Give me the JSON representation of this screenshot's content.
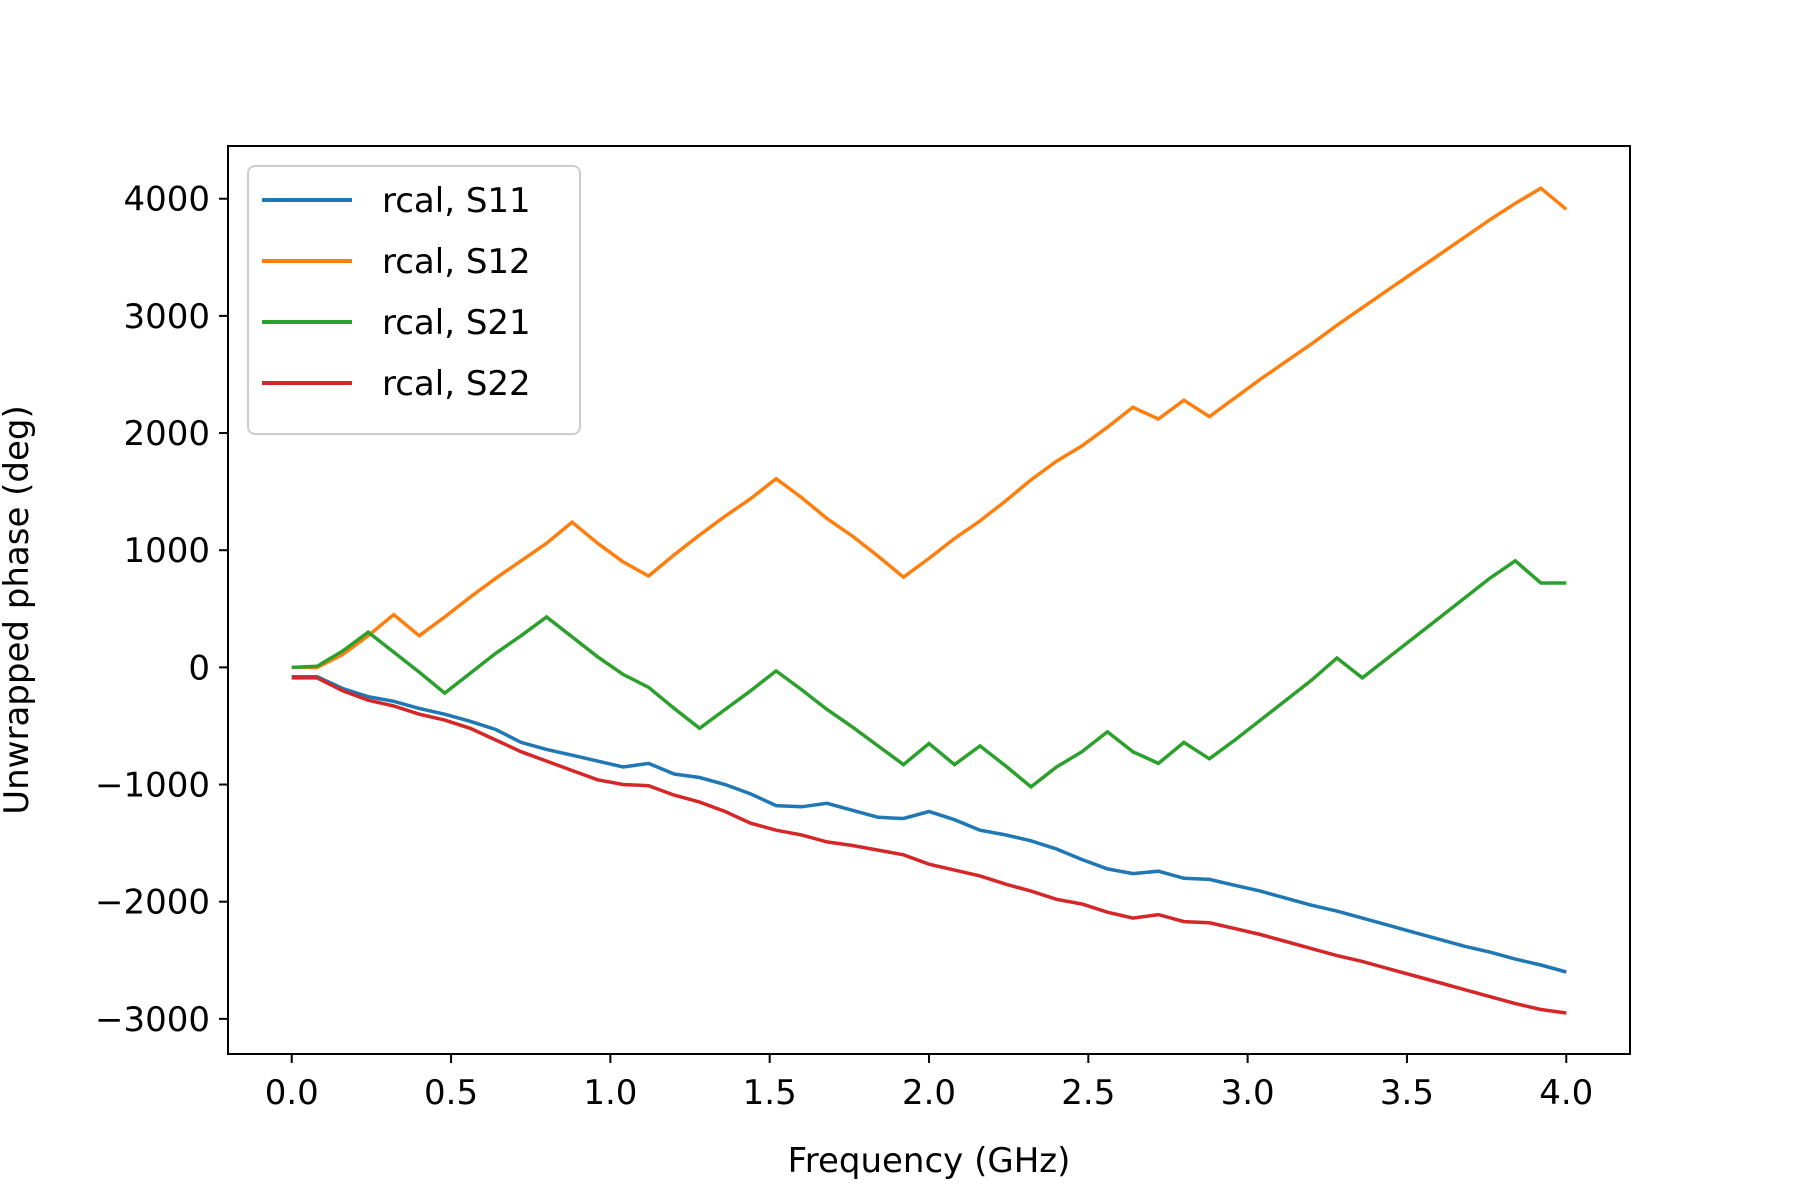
{
  "chart_data": {
    "type": "line",
    "xlabel": "Frequency (GHz)",
    "ylabel": "Unwrapped phase (deg)",
    "xlim": [
      -0.2,
      4.2
    ],
    "ylim": [
      -3300,
      4450
    ],
    "xticks": [
      0.0,
      0.5,
      1.0,
      1.5,
      2.0,
      2.5,
      3.0,
      3.5,
      4.0
    ],
    "xtick_labels": [
      "0.0",
      "0.5",
      "1.0",
      "1.5",
      "2.0",
      "2.5",
      "3.0",
      "3.5",
      "4.0"
    ],
    "yticks": [
      -3000,
      -2000,
      -1000,
      0,
      1000,
      2000,
      3000,
      4000
    ],
    "ytick_labels": [
      "−3000",
      "−2000",
      "−1000",
      "0",
      "1000",
      "2000",
      "3000",
      "4000"
    ],
    "grid": false,
    "legend": "upper-left",
    "x": [
      0.0,
      0.08,
      0.16,
      0.24,
      0.32,
      0.4,
      0.48,
      0.56,
      0.64,
      0.72,
      0.8,
      0.88,
      0.96,
      1.04,
      1.12,
      1.2,
      1.28,
      1.36,
      1.44,
      1.52,
      1.6,
      1.68,
      1.76,
      1.84,
      1.92,
      2.0,
      2.08,
      2.16,
      2.24,
      2.32,
      2.4,
      2.48,
      2.56,
      2.64,
      2.72,
      2.8,
      2.88,
      2.96,
      3.04,
      3.12,
      3.2,
      3.28,
      3.36,
      3.44,
      3.52,
      3.6,
      3.68,
      3.76,
      3.84,
      3.92,
      4.0
    ],
    "series": [
      {
        "name": "rcal, S11",
        "color": "#1f77b4",
        "values": [
          -80,
          -80,
          -180,
          -250,
          -290,
          -350,
          -400,
          -460,
          -530,
          -640,
          -700,
          -750,
          -800,
          -850,
          -820,
          -910,
          -940,
          -1000,
          -1080,
          -1180,
          -1190,
          -1160,
          -1220,
          -1280,
          -1290,
          -1230,
          -1300,
          -1390,
          -1430,
          -1480,
          -1550,
          -1640,
          -1720,
          -1760,
          -1740,
          -1800,
          -1810,
          -1860,
          -1910,
          -1970,
          -2030,
          -2080,
          -2140,
          -2200,
          -2260,
          -2320,
          -2380,
          -2430,
          -2490,
          -2540,
          -2600
        ]
      },
      {
        "name": "rcal, S12",
        "color": "#ff7f0e",
        "values": [
          0,
          0,
          110,
          270,
          450,
          270,
          430,
          600,
          760,
          910,
          1060,
          1240,
          1060,
          900,
          780,
          960,
          1130,
          1290,
          1440,
          1610,
          1450,
          1270,
          1120,
          950,
          770,
          930,
          1100,
          1250,
          1420,
          1600,
          1760,
          1890,
          2050,
          2220,
          2120,
          2280,
          2140,
          2300,
          2460,
          2610,
          2760,
          2920,
          3070,
          3220,
          3370,
          3520,
          3670,
          3820,
          3960,
          4090,
          3910
        ]
      },
      {
        "name": "rcal, S21",
        "color": "#2ca02c",
        "values": [
          0,
          10,
          140,
          300,
          130,
          -40,
          -220,
          -50,
          120,
          270,
          430,
          260,
          90,
          -60,
          -170,
          -350,
          -520,
          -360,
          -200,
          -30,
          -190,
          -360,
          -510,
          -670,
          -830,
          -650,
          -830,
          -670,
          -840,
          -1020,
          -850,
          -720,
          -550,
          -720,
          -820,
          -640,
          -780,
          -620,
          -450,
          -280,
          -110,
          80,
          -90,
          80,
          250,
          420,
          590,
          760,
          910,
          720,
          720
        ]
      },
      {
        "name": "rcal, S22",
        "color": "#d62728",
        "values": [
          -90,
          -90,
          -200,
          -280,
          -330,
          -400,
          -450,
          -520,
          -620,
          -720,
          -800,
          -880,
          -960,
          -1000,
          -1010,
          -1090,
          -1150,
          -1230,
          -1330,
          -1390,
          -1430,
          -1490,
          -1520,
          -1560,
          -1600,
          -1680,
          -1730,
          -1780,
          -1850,
          -1910,
          -1980,
          -2020,
          -2090,
          -2140,
          -2110,
          -2170,
          -2180,
          -2230,
          -2280,
          -2340,
          -2400,
          -2460,
          -2510,
          -2570,
          -2630,
          -2690,
          -2750,
          -2810,
          -2870,
          -2920,
          -2950
        ]
      }
    ]
  }
}
